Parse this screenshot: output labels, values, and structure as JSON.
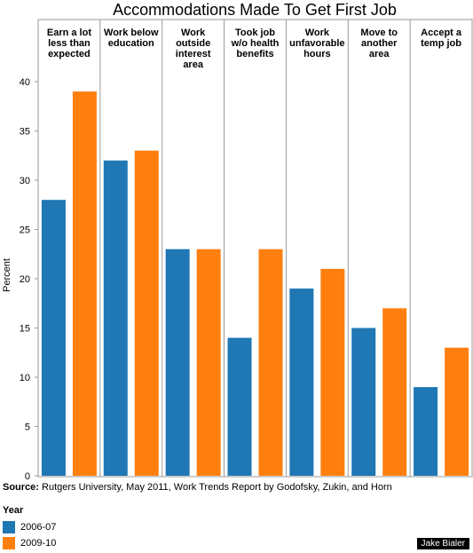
{
  "chart_data": {
    "type": "bar",
    "title": "Accommodations Made To Get First Job",
    "ylabel": "Percent",
    "ylim": [
      0,
      42
    ],
    "yticks": [
      0,
      5,
      10,
      15,
      20,
      25,
      30,
      35,
      40
    ],
    "categories": [
      "Earn a lot less than expected",
      "Work below education",
      "Work outside interest area",
      "Took job w/o health benefits",
      "Work unfavorable hours",
      "Move to another area",
      "Accept a temp job"
    ],
    "category_lines": [
      [
        "Earn a lot",
        "less than",
        "expected"
      ],
      [
        "Work below",
        "education"
      ],
      [
        "Work",
        "outside",
        "interest",
        "area"
      ],
      [
        "Took job",
        "w/o health",
        "benefits"
      ],
      [
        "Work",
        "unfavorable",
        "hours"
      ],
      [
        "Move to",
        "another",
        "area"
      ],
      [
        "Accept a",
        "temp job"
      ]
    ],
    "series": [
      {
        "name": "2006-07",
        "color": "#1f77b4",
        "values": [
          28,
          32,
          23,
          14,
          19,
          15,
          9
        ]
      },
      {
        "name": "2009-10",
        "color": "#ff7f0e",
        "values": [
          39,
          33,
          23,
          23,
          21,
          17,
          13
        ]
      }
    ],
    "legend_placement": "bottom-left",
    "grid": false
  },
  "source": {
    "label": "Source:",
    "text": "Rutgers University, May 2011, Work Trends Report by Godofsky, Zukin, and Horn"
  },
  "legend": {
    "title": "Year"
  },
  "credit": "Jake Bialer"
}
